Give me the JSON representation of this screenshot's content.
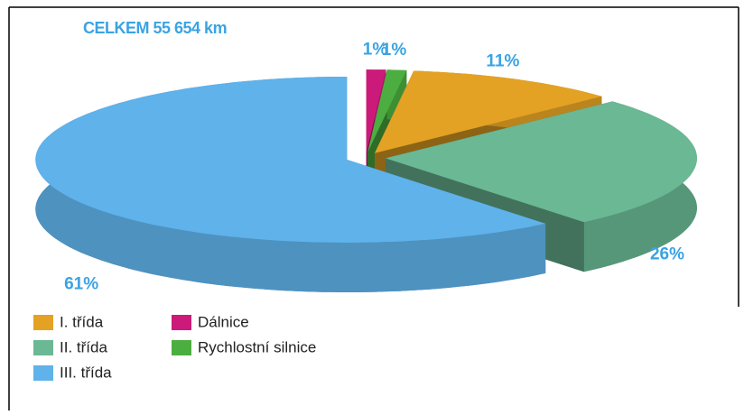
{
  "chart_data": {
    "type": "pie",
    "title": "CELKEM 55 654 km",
    "categories": [
      "Dálnice",
      "Rychlostní silnice",
      "I. třída",
      "II. třída",
      "III. třída"
    ],
    "values": [
      1,
      1,
      11,
      26,
      61
    ],
    "value_labels": [
      "1%",
      "1%",
      "11%",
      "26%",
      "61%"
    ],
    "colors": [
      "#cc1a7a",
      "#4cae40",
      "#e3a224",
      "#6ab894",
      "#5fb2ea"
    ],
    "legend": "bottom-left"
  }
}
